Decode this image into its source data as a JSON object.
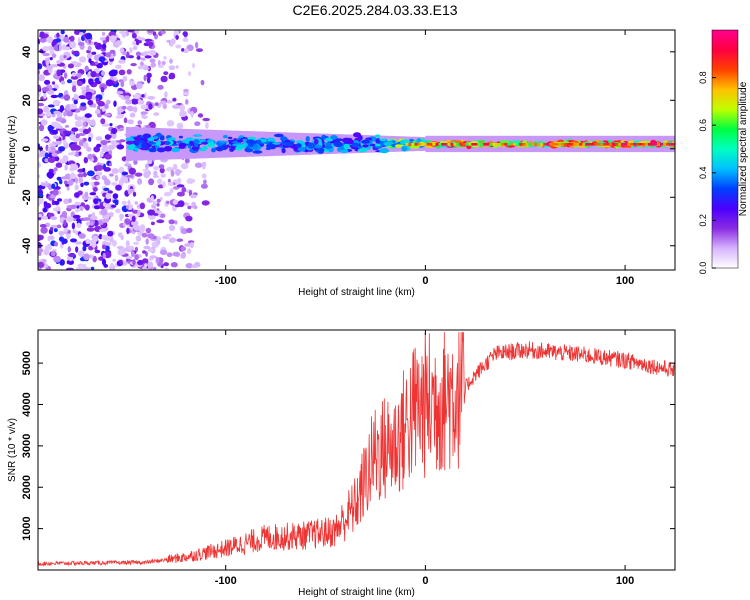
{
  "title": "C2E6.2025.284.03.33.E13",
  "chart_data": [
    {
      "type": "heatmap",
      "xlabel": "Height of straight line (km)",
      "ylabel": "Frequency (Hz)",
      "xlim": [
        -194,
        125
      ],
      "ylim": [
        -50,
        49
      ],
      "xticks": [
        -100,
        0,
        100
      ],
      "yticks": [
        -40,
        -20,
        0,
        20,
        40
      ],
      "colorbar": {
        "label": "Normalized spectral amplitude",
        "range": [
          0,
          1
        ],
        "ticks": [
          "0.0",
          "0.2",
          "0.4",
          "0.6",
          "0.8"
        ],
        "colors": [
          "#ffffff",
          "#d6b3ff",
          "#8a2be2",
          "#4b00ff",
          "#0040ff",
          "#00c0ff",
          "#00ffc0",
          "#00ff40",
          "#c0ff00",
          "#ffc000",
          "#ff4000",
          "#ff0040",
          "#ff0090"
        ]
      }
    },
    {
      "type": "line",
      "xlabel": "Height of straight line (km)",
      "ylabel": "SNR (10 * v/v)",
      "xlim": [
        -194,
        125
      ],
      "ylim": [
        0,
        5800
      ],
      "xticks": [
        -100,
        0,
        100
      ],
      "yticks": [
        1000,
        2000,
        3000,
        4000,
        5000
      ],
      "color": "#ee3333",
      "trend": [
        {
          "x": -194,
          "y": 150
        },
        {
          "x": -140,
          "y": 180
        },
        {
          "x": -120,
          "y": 300
        },
        {
          "x": -100,
          "y": 500
        },
        {
          "x": -80,
          "y": 750
        },
        {
          "x": -60,
          "y": 800
        },
        {
          "x": -45,
          "y": 900
        },
        {
          "x": -35,
          "y": 1500
        },
        {
          "x": -25,
          "y": 2700
        },
        {
          "x": -15,
          "y": 2900
        },
        {
          "x": -5,
          "y": 3700
        },
        {
          "x": 5,
          "y": 3900
        },
        {
          "x": 15,
          "y": 4100
        },
        {
          "x": 25,
          "y": 4700
        },
        {
          "x": 35,
          "y": 5200
        },
        {
          "x": 50,
          "y": 5300
        },
        {
          "x": 75,
          "y": 5200
        },
        {
          "x": 100,
          "y": 5050
        },
        {
          "x": 125,
          "y": 4800
        }
      ]
    }
  ]
}
